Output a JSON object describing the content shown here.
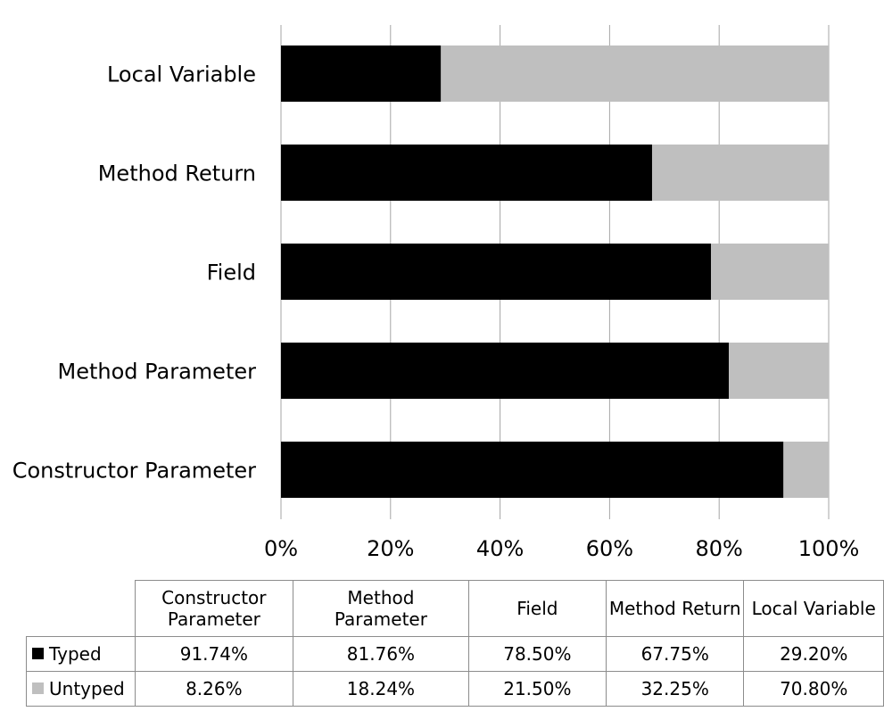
{
  "chart_data": {
    "type": "bar",
    "orientation": "horizontal",
    "stacked": "percent",
    "categories": [
      "Constructor Parameter",
      "Method Parameter",
      "Field",
      "Method Return",
      "Local Variable"
    ],
    "series": [
      {
        "name": "Typed",
        "color": "#000000",
        "values": [
          91.74,
          81.76,
          78.5,
          67.75,
          29.2
        ],
        "display": [
          "91.74%",
          "81.76%",
          "78.50%",
          "67.75%",
          "29.20%"
        ]
      },
      {
        "name": "Untyped",
        "color": "#bfbfbf",
        "values": [
          8.26,
          18.24,
          21.5,
          32.25,
          70.8
        ],
        "display": [
          "8.26%",
          "18.24%",
          "21.50%",
          "32.25%",
          "70.80%"
        ]
      }
    ],
    "x_ticks": [
      "0%",
      "20%",
      "40%",
      "60%",
      "80%",
      "100%"
    ],
    "xlim": [
      0,
      100
    ],
    "grid": "vertical",
    "legend": "data-table-below"
  },
  "table": {
    "headers": [
      "Constructor Parameter",
      "Method Parameter",
      "Field",
      "Method Return",
      "Local Variable"
    ]
  }
}
